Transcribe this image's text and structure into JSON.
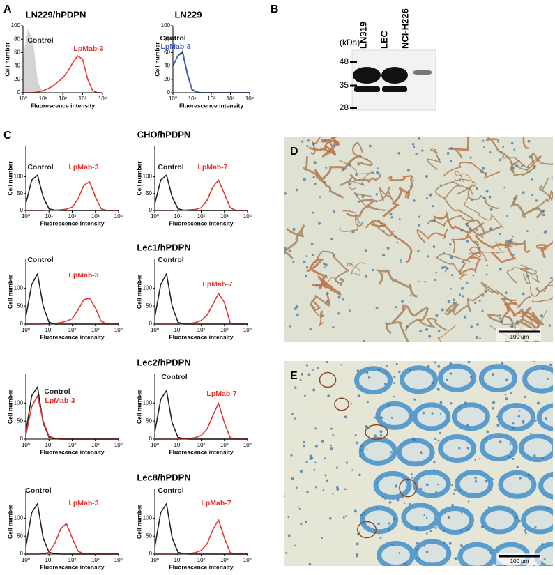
{
  "figure": {
    "panel_labels": [
      "A",
      "B",
      "C",
      "D",
      "E"
    ]
  },
  "chart_data": [
    {
      "type": "line",
      "title": "LN229/hPDPN",
      "xlabel": "Fluorescence intensity",
      "ylabel": "Cell number",
      "xscale": "log",
      "x": [
        1,
        1.8,
        3.2,
        5.6,
        10,
        18,
        32,
        56,
        100,
        180,
        320,
        560,
        1000,
        1800,
        3200,
        5600,
        10000
      ],
      "xlim": [
        1,
        10000
      ],
      "ylim": [
        0,
        100
      ],
      "xticks": [
        {
          "value": 1,
          "label": "10⁰"
        },
        {
          "value": 10,
          "label": "10¹"
        },
        {
          "value": 100,
          "label": "10²"
        },
        {
          "value": 1000,
          "label": "10³"
        },
        {
          "value": 10000,
          "label": "10⁴"
        }
      ],
      "yticks": [
        0,
        20,
        40,
        60,
        80,
        100
      ],
      "series": [
        {
          "name": "Control",
          "color": "#d4d4d4",
          "label_color": "#222222",
          "filled": true,
          "values": [
            50,
            95,
            75,
            15,
            1,
            0,
            0,
            0,
            0,
            0,
            0,
            0,
            0,
            0,
            0,
            0,
            0
          ]
        },
        {
          "name": "LpMab-3",
          "color": "#e8322b",
          "label_color": "#e8322b",
          "values": [
            0,
            0,
            0,
            1,
            3,
            6,
            10,
            16,
            22,
            32,
            45,
            55,
            50,
            20,
            3,
            0,
            0
          ]
        }
      ]
    },
    {
      "type": "line",
      "title": "LN229",
      "xlabel": "Fluorescence intensity",
      "ylabel": "Cell number",
      "xscale": "log",
      "x": [
        1,
        1.8,
        3.2,
        5.6,
        10,
        18,
        32,
        56,
        100,
        180,
        320,
        560,
        1000,
        1800,
        3200,
        5600,
        10000
      ],
      "xlim": [
        1,
        10000
      ],
      "ylim": [
        0,
        100
      ],
      "xticks": [
        {
          "value": 1,
          "label": "10⁰"
        },
        {
          "value": 10,
          "label": "10¹"
        },
        {
          "value": 100,
          "label": "10²"
        },
        {
          "value": 1000,
          "label": "10³"
        },
        {
          "value": 10000,
          "label": "10⁴"
        }
      ],
      "yticks": [
        0,
        20,
        40,
        60,
        80,
        100
      ],
      "series": [
        {
          "name": "Control",
          "color": "#222222",
          "label_color": "#222222",
          "values": [
            40,
            55,
            60,
            28,
            4,
            1,
            0,
            0,
            0,
            0,
            0,
            0,
            0,
            0,
            0,
            0,
            0
          ]
        },
        {
          "name": "LpMab-3",
          "color": "#4a63c8",
          "label_color": "#4a63c8",
          "values": [
            40,
            55,
            62,
            30,
            5,
            1,
            0,
            0,
            0,
            0,
            0,
            0,
            0,
            0,
            0,
            0,
            0
          ]
        }
      ]
    },
    {
      "type": "line",
      "title": "CHO/hPDPN",
      "xlabel": "Fluorescence intensity",
      "ylabel": "Cell number",
      "xscale": "log",
      "x": [
        1,
        1.8,
        3.2,
        5.6,
        10,
        18,
        32,
        56,
        100,
        180,
        320,
        560,
        1000,
        1800,
        3200,
        5600,
        10000
      ],
      "xlim": [
        1,
        10000
      ],
      "ylim": [
        0,
        190
      ],
      "xticks": [
        {
          "value": 1,
          "label": "10⁰"
        },
        {
          "value": 10,
          "label": "10¹"
        },
        {
          "value": 100,
          "label": "10²"
        },
        {
          "value": 1000,
          "label": "10³"
        },
        {
          "value": 10000,
          "label": "10⁴"
        }
      ],
      "yticks": [
        0,
        50,
        100
      ],
      "series": [
        {
          "name": "Control",
          "color": "#222222",
          "label_color": "#222222",
          "values": [
            20,
            90,
            105,
            40,
            5,
            1,
            0,
            0,
            0,
            0,
            0,
            0,
            0,
            0,
            0,
            0,
            0
          ]
        },
        {
          "name": "LpMab-3",
          "color": "#e8322b",
          "label_color": "#e8322b",
          "values": [
            0,
            0,
            0,
            0,
            1,
            1,
            2,
            4,
            10,
            35,
            75,
            85,
            40,
            5,
            0,
            0,
            0
          ]
        }
      ]
    },
    {
      "type": "line",
      "xlabel": "Fluorescence intensity",
      "ylabel": "Cell number",
      "xscale": "log",
      "x": [
        1,
        1.8,
        3.2,
        5.6,
        10,
        18,
        32,
        56,
        100,
        180,
        320,
        560,
        1000,
        1800,
        3200,
        5600,
        10000
      ],
      "xlim": [
        1,
        10000
      ],
      "ylim": [
        0,
        190
      ],
      "xticks": [
        {
          "value": 1,
          "label": "10⁰"
        },
        {
          "value": 10,
          "label": "10¹"
        },
        {
          "value": 100,
          "label": "10²"
        },
        {
          "value": 1000,
          "label": "10³"
        },
        {
          "value": 10000,
          "label": "10⁴"
        }
      ],
      "yticks": [
        0,
        50,
        100
      ],
      "series": [
        {
          "name": "Control",
          "color": "#222222",
          "label_color": "#222222",
          "values": [
            20,
            90,
            105,
            40,
            5,
            1,
            0,
            0,
            0,
            0,
            0,
            0,
            0,
            0,
            0,
            0,
            0
          ]
        },
        {
          "name": "LpMab-7",
          "color": "#e8322b",
          "label_color": "#e8322b",
          "values": [
            0,
            0,
            0,
            0,
            1,
            1,
            2,
            3,
            8,
            30,
            70,
            90,
            50,
            8,
            0,
            0,
            0
          ]
        }
      ]
    },
    {
      "type": "line",
      "title": "Lec1/hPDPN",
      "xlabel": "Fluorescence intensity",
      "ylabel": "Cell number",
      "xscale": "log",
      "x": [
        1,
        1.8,
        3.2,
        5.6,
        10,
        18,
        32,
        56,
        100,
        180,
        320,
        560,
        1000,
        1800,
        3200,
        5600,
        10000
      ],
      "xlim": [
        1,
        10000
      ],
      "ylim": [
        0,
        180
      ],
      "xticks": [
        {
          "value": 1,
          "label": "10⁰"
        },
        {
          "value": 10,
          "label": "10¹"
        },
        {
          "value": 100,
          "label": "10²"
        },
        {
          "value": 1000,
          "label": "10³"
        },
        {
          "value": 10000,
          "label": "10⁴"
        }
      ],
      "yticks": [
        0,
        50,
        100
      ],
      "series": [
        {
          "name": "Control",
          "color": "#222222",
          "label_color": "#222222",
          "values": [
            20,
            110,
            140,
            50,
            5,
            0,
            0,
            0,
            0,
            0,
            0,
            0,
            0,
            0,
            0,
            0,
            0
          ]
        },
        {
          "name": "LpMab-3",
          "color": "#e8322b",
          "label_color": "#e8322b",
          "values": [
            0,
            0,
            0,
            0,
            1,
            2,
            4,
            8,
            15,
            40,
            68,
            72,
            45,
            8,
            0,
            0,
            0
          ]
        }
      ]
    },
    {
      "type": "line",
      "xlabel": "Fluorescence intensity",
      "ylabel": "Cell number",
      "xscale": "log",
      "x": [
        1,
        1.8,
        3.2,
        5.6,
        10,
        18,
        32,
        56,
        100,
        180,
        320,
        560,
        1000,
        1800,
        3200,
        5600,
        10000
      ],
      "xlim": [
        1,
        10000
      ],
      "ylim": [
        0,
        180
      ],
      "xticks": [
        {
          "value": 1,
          "label": "10⁰"
        },
        {
          "value": 10,
          "label": "10¹"
        },
        {
          "value": 100,
          "label": "10²"
        },
        {
          "value": 1000,
          "label": "10³"
        },
        {
          "value": 10000,
          "label": "10⁴"
        }
      ],
      "yticks": [
        0,
        50,
        100
      ],
      "series": [
        {
          "name": "Control",
          "color": "#222222",
          "label_color": "#222222",
          "values": [
            20,
            110,
            140,
            50,
            5,
            0,
            0,
            0,
            0,
            0,
            0,
            0,
            0,
            0,
            0,
            0,
            0
          ]
        },
        {
          "name": "LpMab-7",
          "color": "#e8322b",
          "label_color": "#e8322b",
          "values": [
            0,
            0,
            0,
            0,
            0,
            1,
            2,
            4,
            10,
            25,
            55,
            85,
            60,
            3,
            0,
            0,
            0
          ]
        }
      ]
    },
    {
      "type": "line",
      "title": "Lec2/hPDPN",
      "xlabel": "Fluorescence intensity",
      "ylabel": "Cell number",
      "xscale": "log",
      "x": [
        1,
        1.8,
        3.2,
        5.6,
        10,
        18,
        32,
        56,
        100,
        180,
        320,
        560,
        1000,
        1800,
        3200,
        5600,
        10000
      ],
      "xlim": [
        1,
        10000
      ],
      "ylim": [
        0,
        180
      ],
      "xticks": [
        {
          "value": 1,
          "label": "10⁰"
        },
        {
          "value": 10,
          "label": "10¹"
        },
        {
          "value": 100,
          "label": "10²"
        },
        {
          "value": 1000,
          "label": "10³"
        },
        {
          "value": 10000,
          "label": "10⁴"
        }
      ],
      "yticks": [
        0,
        50,
        100
      ],
      "series": [
        {
          "name": "Control",
          "color": "#222222",
          "label_color": "#222222",
          "values": [
            20,
            120,
            145,
            45,
            5,
            1,
            0,
            0,
            0,
            0,
            0,
            0,
            0,
            0,
            0,
            0,
            0
          ]
        },
        {
          "name": "LpMab-3",
          "color": "#e8322b",
          "label_color": "#e8322b",
          "values": [
            10,
            90,
            120,
            50,
            8,
            2,
            1,
            0,
            0,
            0,
            0,
            0,
            0,
            0,
            0,
            0,
            0
          ]
        }
      ]
    },
    {
      "type": "line",
      "xlabel": "Fluorescence intensity",
      "ylabel": "Cell number",
      "xscale": "log",
      "x": [
        1,
        1.8,
        3.2,
        5.6,
        10,
        18,
        32,
        56,
        100,
        180,
        320,
        560,
        1000,
        1800,
        3200,
        5600,
        10000
      ],
      "xlim": [
        1,
        10000
      ],
      "ylim": [
        0,
        180
      ],
      "xticks": [
        {
          "value": 1,
          "label": "10⁰"
        },
        {
          "value": 10,
          "label": "10¹"
        },
        {
          "value": 100,
          "label": "10²"
        },
        {
          "value": 1000,
          "label": "10³"
        },
        {
          "value": 10000,
          "label": "10⁴"
        }
      ],
      "yticks": [
        0,
        50,
        100
      ],
      "series": [
        {
          "name": "Control",
          "color": "#222222",
          "label_color": "#222222",
          "values": [
            20,
            110,
            135,
            45,
            5,
            1,
            0,
            0,
            0,
            0,
            0,
            0,
            0,
            0,
            0,
            0,
            0
          ]
        },
        {
          "name": "LpMab-7",
          "color": "#e8322b",
          "label_color": "#e8322b",
          "values": [
            0,
            0,
            0,
            0,
            0,
            1,
            2,
            4,
            10,
            28,
            65,
            100,
            45,
            4,
            0,
            0,
            0
          ]
        }
      ]
    },
    {
      "type": "line",
      "title": "Lec8/hPDPN",
      "xlabel": "Fluorescence intensity",
      "ylabel": "Cell number",
      "xscale": "log",
      "x": [
        1,
        1.8,
        3.2,
        5.6,
        10,
        18,
        32,
        56,
        100,
        180,
        320,
        560,
        1000,
        1800,
        3200,
        5600,
        10000
      ],
      "xlim": [
        1,
        10000
      ],
      "ylim": [
        0,
        180
      ],
      "xticks": [
        {
          "value": 1,
          "label": "10⁰"
        },
        {
          "value": 10,
          "label": "10¹"
        },
        {
          "value": 100,
          "label": "10²"
        },
        {
          "value": 1000,
          "label": "10³"
        },
        {
          "value": 10000,
          "label": "10⁴"
        }
      ],
      "yticks": [
        0,
        50,
        100
      ],
      "series": [
        {
          "name": "Control",
          "color": "#222222",
          "label_color": "#222222",
          "values": [
            20,
            115,
            140,
            45,
            5,
            1,
            0,
            0,
            0,
            0,
            0,
            0,
            0,
            0,
            0,
            0,
            0
          ]
        },
        {
          "name": "LpMab-3",
          "color": "#e8322b",
          "label_color": "#e8322b",
          "values": [
            0,
            0,
            0,
            1,
            5,
            30,
            70,
            85,
            45,
            8,
            1,
            0,
            0,
            0,
            0,
            0,
            0
          ]
        }
      ]
    },
    {
      "type": "line",
      "xlabel": "Fluorescence intensity",
      "ylabel": "Cell number",
      "xscale": "log",
      "x": [
        1,
        1.8,
        3.2,
        5.6,
        10,
        18,
        32,
        56,
        100,
        180,
        320,
        560,
        1000,
        1800,
        3200,
        5600,
        10000
      ],
      "xlim": [
        1,
        10000
      ],
      "ylim": [
        0,
        180
      ],
      "xticks": [
        {
          "value": 1,
          "label": "10⁰"
        },
        {
          "value": 10,
          "label": "10¹"
        },
        {
          "value": 100,
          "label": "10²"
        },
        {
          "value": 1000,
          "label": "10³"
        },
        {
          "value": 10000,
          "label": "10⁴"
        }
      ],
      "yticks": [
        0,
        50,
        100
      ],
      "series": [
        {
          "name": "Control",
          "color": "#222222",
          "label_color": "#222222",
          "values": [
            20,
            115,
            140,
            45,
            5,
            1,
            0,
            0,
            0,
            0,
            0,
            0,
            0,
            0,
            0,
            0,
            0
          ]
        },
        {
          "name": "LpMab-7",
          "color": "#e8322b",
          "label_color": "#e8322b",
          "values": [
            0,
            0,
            0,
            0,
            0,
            1,
            2,
            4,
            10,
            28,
            68,
            95,
            45,
            4,
            0,
            0,
            0
          ]
        }
      ]
    }
  ],
  "blot": {
    "unit": "(kDa)",
    "markers": [
      48,
      35,
      28
    ],
    "lanes": [
      "LN319",
      "LEC",
      "NCI-H226"
    ]
  },
  "micrographs": [
    {
      "scale_bar": "100 µm"
    },
    {
      "scale_bar": "100 µm"
    }
  ]
}
